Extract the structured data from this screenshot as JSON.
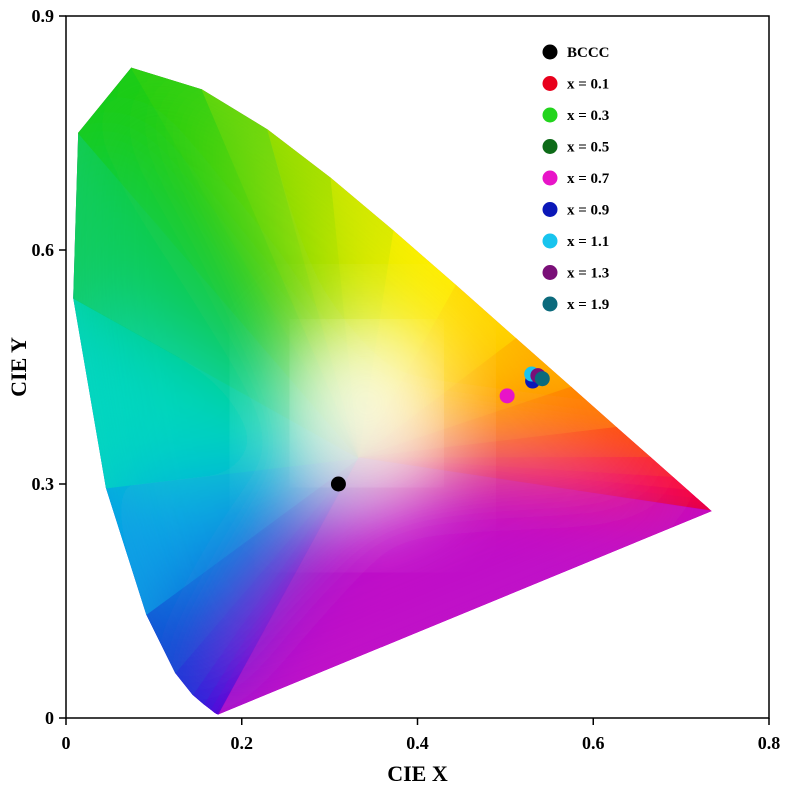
{
  "chart_data": {
    "type": "scatter",
    "title": "",
    "xlabel": "CIE X",
    "ylabel": "CIE Y",
    "xlim": [
      0,
      0.8
    ],
    "ylim": [
      0,
      0.9
    ],
    "xticks": [
      0,
      0.2,
      0.4,
      0.6,
      0.8
    ],
    "xtick_labels": [
      "0",
      "0.2",
      "0.4",
      "0.6",
      "0.8"
    ],
    "yticks": [
      0,
      0.3,
      0.6,
      0.9
    ],
    "ytick_labels": [
      "0",
      "0.3",
      "0.6",
      "0.9"
    ],
    "grid": false,
    "legend_position": "top-right",
    "background": "CIE 1931 chromaticity diagram (horseshoe gamut)",
    "series": [
      {
        "name": "BCCC",
        "color": "#000000",
        "x": 0.31,
        "y": 0.3
      },
      {
        "name": "x = 0.1",
        "color": "#e8001c",
        "x": 0.538,
        "y": 0.438
      },
      {
        "name": "x = 0.3",
        "color": "#22d41c",
        "x": 0.535,
        "y": 0.437
      },
      {
        "name": "x = 0.5",
        "color": "#0d6b18",
        "x": 0.537,
        "y": 0.436
      },
      {
        "name": "x = 0.7",
        "color": "#e814c8",
        "x": 0.502,
        "y": 0.413
      },
      {
        "name": "x = 0.9",
        "color": "#0b18b8",
        "x": 0.531,
        "y": 0.432
      },
      {
        "name": "x = 1.1",
        "color": "#18c4ee",
        "x": 0.53,
        "y": 0.441
      },
      {
        "name": "x = 1.3",
        "color": "#7a0f78",
        "x": 0.537,
        "y": 0.439
      },
      {
        "name": "x = 1.9",
        "color": "#0b6a7c",
        "x": 0.542,
        "y": 0.435
      }
    ]
  }
}
